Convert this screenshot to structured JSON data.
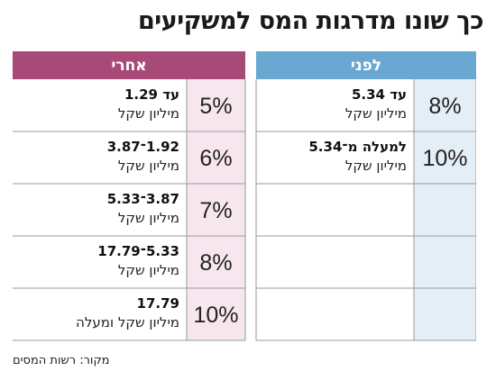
{
  "title": "כך שונו מדרגות המס למשקיעים",
  "source": "מקור: רשות המסים",
  "colors": {
    "before_header": "#6aa8d2",
    "before_rate_cell": "#e4eef6",
    "after_header": "#a84a78",
    "after_rate_cell": "#f7e6ee",
    "grid": "#9a9a9a"
  },
  "chart_data": {
    "type": "table",
    "columns": [
      "לפני",
      "אחרי"
    ],
    "before": [
      {
        "rate": "8%",
        "line1": "עד 5.34",
        "line2": "מיליון שקל"
      },
      {
        "rate": "10%",
        "line1": "למעלה מ־5.34",
        "line2": "מיליון שקל"
      }
    ],
    "after": [
      {
        "rate": "5%",
        "line1": "עד 1.29",
        "line2": "מיליון שקל"
      },
      {
        "rate": "6%",
        "line1": "1.92־3.87",
        "line2": "מיליון שקל"
      },
      {
        "rate": "7%",
        "line1": "3.87־5.33",
        "line2": "מיליון שקל"
      },
      {
        "rate": "8%",
        "line1": "5.33־17.79",
        "line2": "מיליון שקל"
      },
      {
        "rate": "10%",
        "line1": "17.79",
        "line2": "מיליון שקל ומעלה"
      }
    ]
  }
}
